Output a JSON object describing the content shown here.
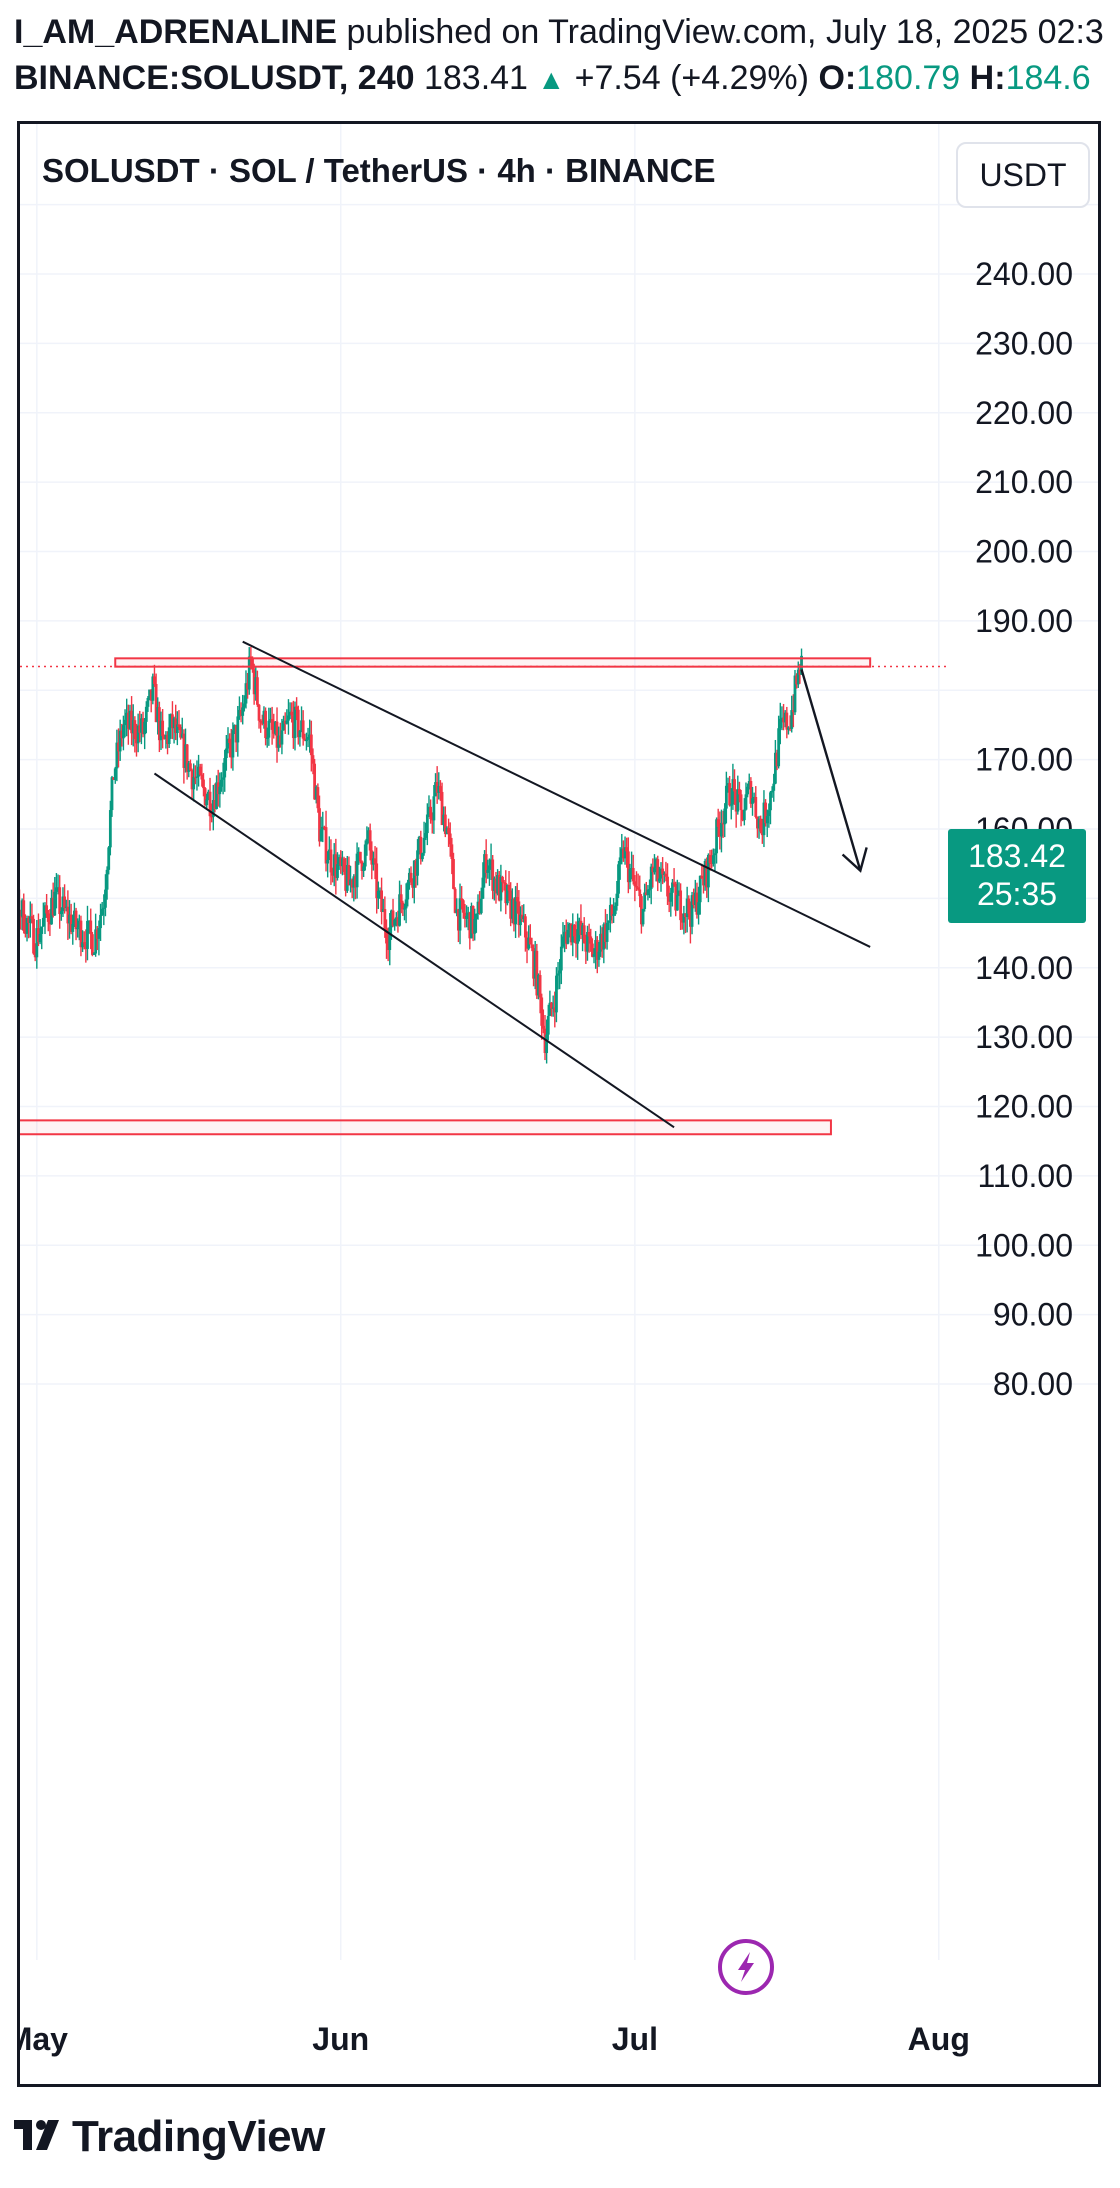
{
  "header": {
    "author": "I_AM_ADRENALINE",
    "published_text": "published on TradingView.com, July 18, 2025 02:3",
    "symbol": "BINANCE:SOLUSDT, 240",
    "last": "183.41",
    "change": "+7.54 (+4.29%)",
    "open_label": "O:",
    "open_value": "180.79",
    "high_label": "H:",
    "high_value": "184.6"
  },
  "chart": {
    "title": "SOLUSDT · SOL / TetherUS · 4h · BINANCE",
    "currency": "USDT",
    "current_price": "183.42",
    "countdown": "25:35",
    "colors": {
      "up": "#089981",
      "down": "#f23645",
      "zone": "#f23645",
      "line": "#131722",
      "grid": "#f0f3fa",
      "bolt": "#9c27b0"
    }
  },
  "chart_data": {
    "type": "candlestick",
    "title": "SOLUSDT · SOL / TetherUS · 4h · BINANCE",
    "y_ticks": [
      "240.00",
      "230.00",
      "220.00",
      "210.00",
      "200.00",
      "190.00",
      "170.00",
      "160.00",
      "150.00",
      "140.00",
      "130.00",
      "120.00",
      "110.00",
      "100.00",
      "90.00",
      "80.00"
    ],
    "x_ticks": [
      "May",
      "Jun",
      "Jul",
      "Aug"
    ],
    "ylim": [
      72,
      257
    ],
    "xlim": [
      "2025-04-25",
      "2025-08-05"
    ],
    "price_path": [
      [
        "2025-04-25",
        150
      ],
      [
        "2025-04-28",
        152
      ],
      [
        "2025-04-30",
        147
      ],
      [
        "2025-05-01",
        144
      ],
      [
        "2025-05-03",
        150
      ],
      [
        "2025-05-05",
        146
      ],
      [
        "2025-05-07",
        144
      ],
      [
        "2025-05-08",
        150
      ],
      [
        "2025-05-09",
        168
      ],
      [
        "2025-05-10",
        175
      ],
      [
        "2025-05-12",
        174
      ],
      [
        "2025-05-13",
        180
      ],
      [
        "2025-05-14",
        172
      ],
      [
        "2025-05-15",
        175
      ],
      [
        "2025-05-17",
        168
      ],
      [
        "2025-05-19",
        164
      ],
      [
        "2025-05-20",
        168
      ],
      [
        "2025-05-22",
        176
      ],
      [
        "2025-05-23",
        184
      ],
      [
        "2025-05-24",
        176
      ],
      [
        "2025-05-26",
        172
      ],
      [
        "2025-05-27",
        176
      ],
      [
        "2025-05-29",
        173
      ],
      [
        "2025-05-30",
        160
      ],
      [
        "2025-05-31",
        156
      ],
      [
        "2025-06-02",
        152
      ],
      [
        "2025-06-04",
        158
      ],
      [
        "2025-06-05",
        150
      ],
      [
        "2025-06-06",
        145
      ],
      [
        "2025-06-08",
        152
      ],
      [
        "2025-06-10",
        160
      ],
      [
        "2025-06-11",
        166
      ],
      [
        "2025-06-12",
        160
      ],
      [
        "2025-06-13",
        148
      ],
      [
        "2025-06-15",
        146
      ],
      [
        "2025-06-16",
        156
      ],
      [
        "2025-06-17",
        152
      ],
      [
        "2025-06-19",
        148
      ],
      [
        "2025-06-20",
        145
      ],
      [
        "2025-06-21",
        140
      ],
      [
        "2025-06-22",
        130
      ],
      [
        "2025-06-23",
        136
      ],
      [
        "2025-06-24",
        145
      ],
      [
        "2025-06-25",
        146
      ],
      [
        "2025-06-27",
        142
      ],
      [
        "2025-06-29",
        148
      ],
      [
        "2025-06-30",
        157
      ],
      [
        "2025-07-01",
        152
      ],
      [
        "2025-07-02",
        148
      ],
      [
        "2025-07-03",
        154
      ],
      [
        "2025-07-05",
        150
      ],
      [
        "2025-07-07",
        148
      ],
      [
        "2025-07-08",
        152
      ],
      [
        "2025-07-09",
        156
      ],
      [
        "2025-07-10",
        162
      ],
      [
        "2025-07-11",
        166
      ],
      [
        "2025-07-12",
        162
      ],
      [
        "2025-07-13",
        166
      ],
      [
        "2025-07-14",
        160
      ],
      [
        "2025-07-15",
        165
      ],
      [
        "2025-07-16",
        174
      ],
      [
        "2025-07-17",
        176
      ],
      [
        "2025-07-18",
        183.42
      ]
    ],
    "resistance_zone": {
      "from": "2025-05-09",
      "to": "2025-07-25",
      "low": 183.4,
      "high": 184.6
    },
    "support_zone": {
      "from": "2025-04-25",
      "to": "2025-07-21",
      "low": 116.0,
      "high": 118.0
    },
    "upper_trendline": [
      [
        "2025-05-22",
        187.0
      ],
      [
        "2025-07-25",
        143.0
      ]
    ],
    "lower_trendline": [
      [
        "2025-05-13",
        168.0
      ],
      [
        "2025-07-05",
        117.0
      ]
    ],
    "projection_arrow": [
      [
        "2025-07-18",
        183.0
      ],
      [
        "2025-07-24",
        154.0
      ]
    ],
    "current_price": 183.42,
    "grid": true
  }
}
